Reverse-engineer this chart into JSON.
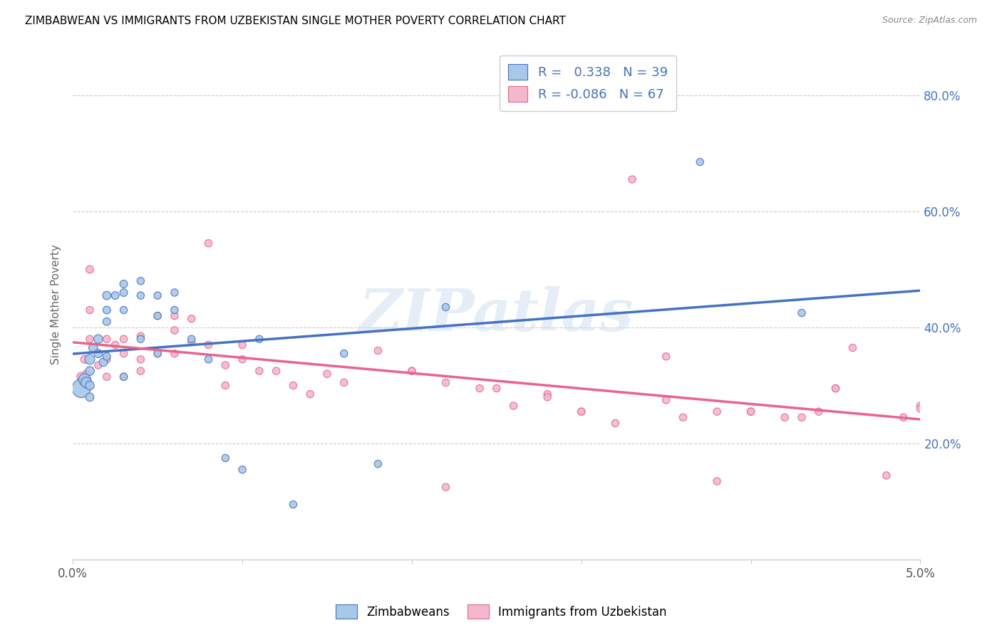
{
  "title": "ZIMBABWEAN VS IMMIGRANTS FROM UZBEKISTAN SINGLE MOTHER POVERTY CORRELATION CHART",
  "source": "Source: ZipAtlas.com",
  "ylabel": "Single Mother Poverty",
  "xlim": [
    0.0,
    0.05
  ],
  "ylim": [
    0.0,
    0.88
  ],
  "yticks": [
    0.2,
    0.4,
    0.6,
    0.8
  ],
  "ytick_labels": [
    "20.0%",
    "40.0%",
    "60.0%",
    "80.0%"
  ],
  "legend1_r": "0.338",
  "legend1_n": "39",
  "legend2_r": "-0.086",
  "legend2_n": "67",
  "blue_color": "#A8C8E8",
  "pink_color": "#F4B8CC",
  "blue_line_color": "#4472C4",
  "pink_line_color": "#E8648C",
  "watermark": "ZIPatlas",
  "zimbabwean_x": [
    0.0005,
    0.0007,
    0.0008,
    0.001,
    0.001,
    0.001,
    0.001,
    0.0012,
    0.0015,
    0.0015,
    0.0018,
    0.002,
    0.002,
    0.002,
    0.002,
    0.0025,
    0.003,
    0.003,
    0.003,
    0.003,
    0.004,
    0.004,
    0.004,
    0.005,
    0.005,
    0.005,
    0.006,
    0.006,
    0.007,
    0.008,
    0.009,
    0.01,
    0.011,
    0.013,
    0.016,
    0.018,
    0.022,
    0.037,
    0.043
  ],
  "zimbabwean_y": [
    0.295,
    0.31,
    0.305,
    0.345,
    0.325,
    0.3,
    0.28,
    0.365,
    0.38,
    0.355,
    0.34,
    0.455,
    0.43,
    0.41,
    0.35,
    0.455,
    0.475,
    0.46,
    0.43,
    0.315,
    0.48,
    0.455,
    0.38,
    0.455,
    0.42,
    0.355,
    0.46,
    0.43,
    0.38,
    0.345,
    0.175,
    0.155,
    0.38,
    0.095,
    0.355,
    0.165,
    0.435,
    0.685,
    0.425
  ],
  "zimbabwean_sizes": [
    350,
    150,
    120,
    100,
    80,
    80,
    70,
    80,
    80,
    70,
    70,
    70,
    60,
    60,
    60,
    60,
    60,
    60,
    55,
    55,
    55,
    55,
    55,
    55,
    55,
    55,
    55,
    55,
    55,
    55,
    55,
    55,
    55,
    55,
    55,
    55,
    55,
    55,
    55
  ],
  "uzbekistan_x": [
    0.0005,
    0.0007,
    0.0008,
    0.001,
    0.001,
    0.001,
    0.0015,
    0.002,
    0.002,
    0.002,
    0.0025,
    0.003,
    0.003,
    0.003,
    0.004,
    0.004,
    0.004,
    0.005,
    0.005,
    0.006,
    0.006,
    0.006,
    0.007,
    0.007,
    0.008,
    0.008,
    0.009,
    0.009,
    0.01,
    0.01,
    0.011,
    0.012,
    0.013,
    0.014,
    0.015,
    0.016,
    0.018,
    0.02,
    0.022,
    0.024,
    0.026,
    0.028,
    0.03,
    0.032,
    0.035,
    0.036,
    0.038,
    0.04,
    0.042,
    0.043,
    0.044,
    0.045,
    0.046,
    0.048,
    0.049,
    0.05,
    0.02,
    0.025,
    0.03,
    0.035,
    0.04,
    0.045,
    0.05,
    0.033,
    0.038,
    0.028,
    0.022
  ],
  "uzbekistan_y": [
    0.315,
    0.345,
    0.32,
    0.5,
    0.43,
    0.38,
    0.335,
    0.38,
    0.345,
    0.315,
    0.37,
    0.38,
    0.355,
    0.315,
    0.385,
    0.345,
    0.325,
    0.42,
    0.355,
    0.42,
    0.395,
    0.355,
    0.415,
    0.375,
    0.545,
    0.37,
    0.335,
    0.3,
    0.37,
    0.345,
    0.325,
    0.325,
    0.3,
    0.285,
    0.32,
    0.305,
    0.36,
    0.325,
    0.305,
    0.295,
    0.265,
    0.285,
    0.255,
    0.235,
    0.275,
    0.245,
    0.135,
    0.255,
    0.245,
    0.245,
    0.255,
    0.295,
    0.365,
    0.145,
    0.245,
    0.265,
    0.325,
    0.295,
    0.255,
    0.35,
    0.255,
    0.295,
    0.26,
    0.655,
    0.255,
    0.28,
    0.125
  ],
  "uzbekistan_sizes": [
    80,
    65,
    55,
    60,
    55,
    55,
    55,
    55,
    55,
    55,
    55,
    55,
    55,
    55,
    55,
    55,
    55,
    55,
    55,
    55,
    55,
    55,
    55,
    55,
    55,
    55,
    55,
    55,
    55,
    55,
    55,
    55,
    55,
    55,
    55,
    55,
    55,
    55,
    55,
    55,
    55,
    55,
    55,
    55,
    55,
    55,
    55,
    55,
    55,
    55,
    55,
    55,
    55,
    55,
    55,
    55,
    55,
    55,
    55,
    55,
    55,
    55,
    55,
    55,
    55,
    55,
    55
  ]
}
